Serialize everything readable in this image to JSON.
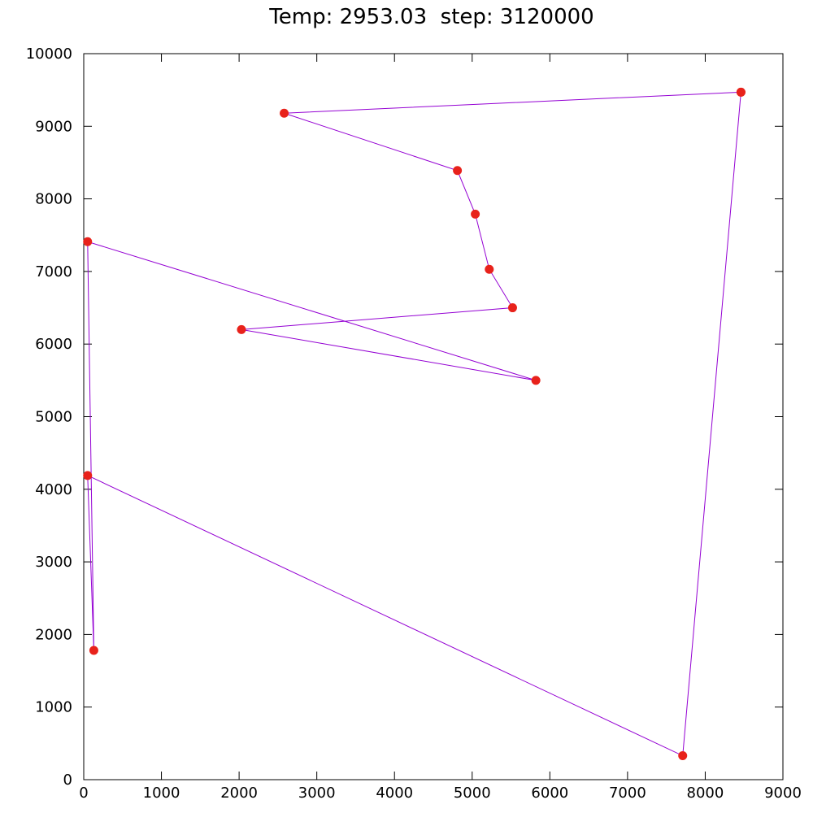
{
  "chart_data": {
    "type": "line",
    "title": "Temp: 2953.03  step: 3120000",
    "xlabel": "",
    "ylabel": "",
    "xlim": [
      0,
      9000
    ],
    "ylim": [
      0,
      10000
    ],
    "grid": false,
    "x_ticks": [
      "0",
      "1000",
      "2000",
      "3000",
      "4000",
      "5000",
      "6000",
      "7000",
      "8000",
      "9000"
    ],
    "y_ticks": [
      "0",
      "1000",
      "2000",
      "3000",
      "4000",
      "5000",
      "6000",
      "7000",
      "8000",
      "9000",
      "10000"
    ],
    "series": [
      {
        "line_color": "#9400d3",
        "marker_color": "#e8221b",
        "marker": "circle",
        "points": [
          {
            "x": 8460,
            "y": 9470
          },
          {
            "x": 2580,
            "y": 9180
          },
          {
            "x": 4810,
            "y": 8390
          },
          {
            "x": 5040,
            "y": 7790
          },
          {
            "x": 5220,
            "y": 7030
          },
          {
            "x": 5520,
            "y": 6500
          },
          {
            "x": 2030,
            "y": 6200
          },
          {
            "x": 5820,
            "y": 5500
          },
          {
            "x": 50,
            "y": 7410
          },
          {
            "x": 130,
            "y": 1780
          },
          {
            "x": 50,
            "y": 4190
          },
          {
            "x": 7710,
            "y": 330
          },
          {
            "x": 8460,
            "y": 9470
          }
        ]
      }
    ]
  }
}
